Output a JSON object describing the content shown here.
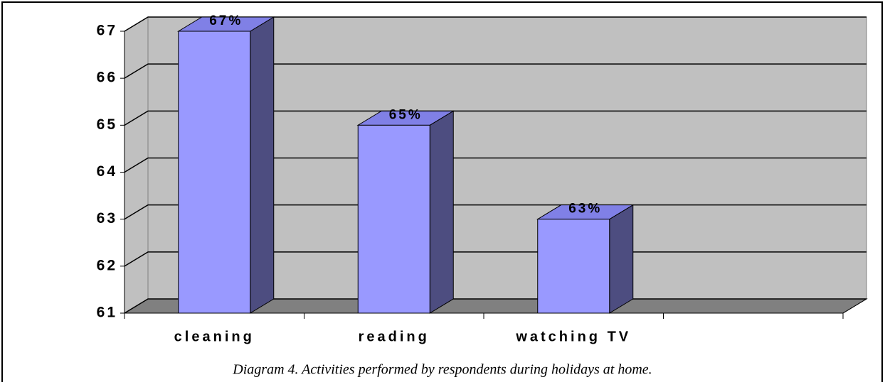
{
  "chart_data": {
    "type": "bar3d",
    "categories": [
      "cleaning",
      "reading",
      "watching TV",
      null
    ],
    "values": [
      67,
      65,
      63,
      null
    ],
    "value_labels": [
      "67%",
      "65%",
      "63%",
      null
    ],
    "color": "#9999ff",
    "ylim": [
      61,
      67
    ],
    "yticks": [
      61,
      62,
      63,
      64,
      65,
      66,
      67
    ],
    "grid": true,
    "caption": "Diagram 4. Activities performed by respondents during holidays at home."
  }
}
